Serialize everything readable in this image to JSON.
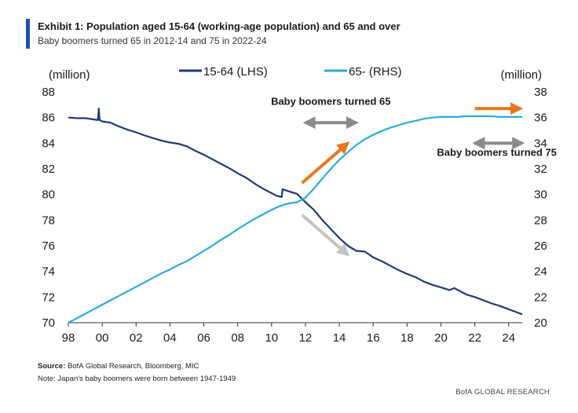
{
  "header": {
    "title": "Exhibit 1: Population aged 15-64 (working-age population) and 65 and over",
    "subtitle": "Baby boomers turned 65 in 2012-14 and 75 in 2022-24"
  },
  "footer": {
    "source_label": "Source:",
    "source_text": " BofA Global Research, Bloomberg, MIC",
    "note": "Note: Japan's baby boomers were born between 1947-1949",
    "brand": "BofA GLOBAL RESEARCH"
  },
  "colors": {
    "lhs_series": "#1f3a7a",
    "rhs_series": "#29abe2",
    "orange_arrow": "#e8761e",
    "grey_arrow": "#8a8a8a",
    "light_grey_arrow": "#c4c4c4"
  },
  "chart_data": {
    "type": "line",
    "title": "",
    "ylabel_left": "(million)",
    "ylabel_right": "(million)",
    "x_range": [
      1998,
      2024.8
    ],
    "x_ticks": [
      1998,
      2000,
      2002,
      2004,
      2006,
      2008,
      2010,
      2012,
      2014,
      2016,
      2018,
      2020,
      2022,
      2024
    ],
    "x_tick_labels": [
      "98",
      "00",
      "02",
      "04",
      "06",
      "08",
      "10",
      "12",
      "14",
      "16",
      "18",
      "20",
      "22",
      "24"
    ],
    "y_left_range": [
      70,
      88
    ],
    "y_left_ticks": [
      "70",
      "72",
      "74",
      "76",
      "78",
      "80",
      "82",
      "84",
      "86",
      "88"
    ],
    "y_right_range": [
      20,
      38
    ],
    "y_right_ticks": [
      "20",
      "22",
      "24",
      "26",
      "28",
      "30",
      "32",
      "34",
      "36",
      "38"
    ],
    "grid": false,
    "legend_position": "top",
    "series": [
      {
        "name": "15-64 (LHS)",
        "axis": "left",
        "x": [
          1998,
          1998.5,
          1999,
          1999.5,
          1999.75,
          1999.8,
          1999.85,
          2000,
          2000.5,
          2001,
          2001.5,
          2002,
          2002.5,
          2003,
          2003.5,
          2004,
          2004.5,
          2005,
          2005.5,
          2006,
          2006.5,
          2007,
          2007.5,
          2008,
          2008.5,
          2009,
          2009.5,
          2010,
          2010.3,
          2010.6,
          2010.65,
          2011,
          2011.5,
          2012,
          2012.5,
          2013,
          2013.5,
          2014,
          2014.5,
          2015,
          2015.5,
          2016,
          2016.5,
          2017,
          2017.5,
          2018,
          2018.5,
          2019,
          2019.5,
          2020,
          2020.5,
          2020.8,
          2021,
          2021.5,
          2022,
          2022.5,
          2023,
          2023.5,
          2024,
          2024.5,
          2024.8
        ],
        "values": [
          86.0,
          85.95,
          85.95,
          85.85,
          85.8,
          86.7,
          85.8,
          85.7,
          85.6,
          85.3,
          85.05,
          84.85,
          84.6,
          84.4,
          84.2,
          84.05,
          83.95,
          83.75,
          83.4,
          83.1,
          82.75,
          82.4,
          82.05,
          81.65,
          81.3,
          80.85,
          80.45,
          80.1,
          79.9,
          79.8,
          80.4,
          80.25,
          80.05,
          79.4,
          78.8,
          78.0,
          77.3,
          76.6,
          76.0,
          75.6,
          75.55,
          75.1,
          74.8,
          74.45,
          74.1,
          73.8,
          73.55,
          73.2,
          72.95,
          72.75,
          72.55,
          72.7,
          72.55,
          72.2,
          72.0,
          71.75,
          71.5,
          71.3,
          71.05,
          70.8,
          70.65
        ]
      },
      {
        "name": "65- (RHS)",
        "axis": "right",
        "x": [
          1998,
          1998.5,
          1999,
          1999.5,
          2000,
          2000.5,
          2001,
          2001.5,
          2002,
          2002.5,
          2003,
          2003.5,
          2004,
          2004.5,
          2005,
          2005.5,
          2006,
          2006.5,
          2007,
          2007.5,
          2008,
          2008.5,
          2009,
          2009.5,
          2010,
          2010.5,
          2011,
          2011.5,
          2012,
          2012.5,
          2013,
          2013.5,
          2014,
          2014.5,
          2015,
          2015.5,
          2016,
          2016.5,
          2017,
          2017.5,
          2018,
          2018.5,
          2019,
          2019.5,
          2020,
          2020.5,
          2021,
          2021.5,
          2022,
          2022.5,
          2023,
          2023.5,
          2024,
          2024.5,
          2024.8
        ],
        "values": [
          20.0,
          20.35,
          20.7,
          21.05,
          21.4,
          21.75,
          22.1,
          22.45,
          22.8,
          23.15,
          23.5,
          23.85,
          24.15,
          24.5,
          24.8,
          25.2,
          25.6,
          26.0,
          26.45,
          26.85,
          27.3,
          27.7,
          28.1,
          28.45,
          28.8,
          29.1,
          29.3,
          29.4,
          29.75,
          30.45,
          31.25,
          32.0,
          32.7,
          33.3,
          33.85,
          34.3,
          34.65,
          34.95,
          35.2,
          35.4,
          35.6,
          35.75,
          35.9,
          36.0,
          36.05,
          36.05,
          36.05,
          36.1,
          36.1,
          36.1,
          36.1,
          36.05,
          36.05,
          36.05,
          36.05
        ]
      }
    ],
    "annotations": [
      {
        "text": "Baby boomers turned 65",
        "x": 2013.5,
        "y_left": 87.0
      },
      {
        "text": "Baby boomers turned 75",
        "x": 2023.3,
        "y_right": 33.0
      }
    ],
    "arrows": [
      {
        "kind": "double",
        "color": "grey",
        "x1": 2012,
        "x2": 2015,
        "y_right": 35.6
      },
      {
        "kind": "double",
        "color": "grey",
        "x1": 2022,
        "x2": 2024.8,
        "y_right": 34.0
      },
      {
        "kind": "single",
        "color": "orange",
        "x1": 2011.8,
        "y1_right": 30.9,
        "x2": 2014.5,
        "y2_right": 34.0
      },
      {
        "kind": "single",
        "color": "orange",
        "x1": 2022,
        "y1_right": 36.7,
        "x2": 2024.7,
        "y2_right": 36.7
      },
      {
        "kind": "single",
        "color": "light_grey",
        "x1": 2011.8,
        "y1_left": 78.4,
        "x2": 2014.5,
        "y2_left": 75.3
      }
    ]
  }
}
